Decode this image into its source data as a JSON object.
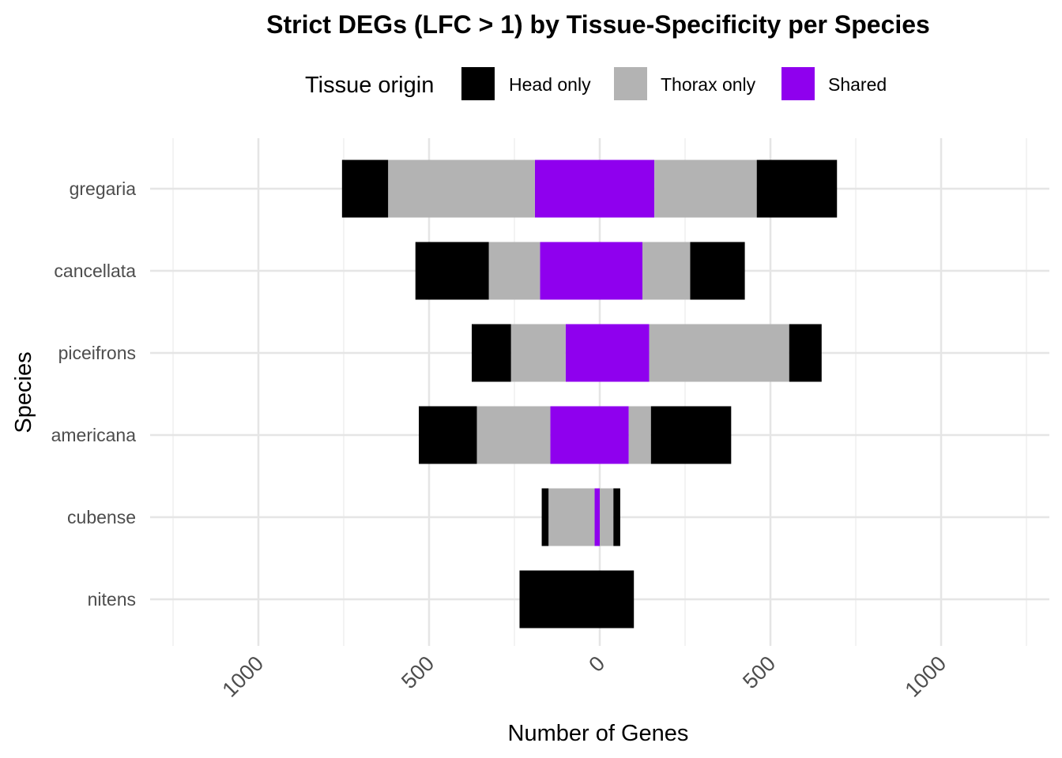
{
  "chart_data": {
    "type": "bar",
    "orientation": "horizontal",
    "stacked": true,
    "diverging": true,
    "title": "Strict DEGs (LFC > 1) by Tissue-Specificity per Species",
    "xlabel": "Number of Genes",
    "ylabel": "Species",
    "legend": {
      "title": "Tissue origin",
      "placement": "top",
      "entries": [
        {
          "key": "head",
          "label": "Head only",
          "color": "#000000"
        },
        {
          "key": "thorax",
          "label": "Thorax only",
          "color": "#b3b3b3"
        },
        {
          "key": "shared",
          "label": "Shared",
          "color": "#8f00ee"
        }
      ]
    },
    "xlim": [
      -1250,
      1250
    ],
    "x_ticks": [
      -1000,
      -500,
      0,
      500,
      1000
    ],
    "x_tick_labels": [
      "1000",
      "500",
      "0",
      "500",
      "1000"
    ],
    "grid": true,
    "categories": [
      "gregaria",
      "cancellata",
      "piceifrons",
      "americana",
      "cubense",
      "nitens"
    ],
    "stack_order_from_center": [
      "shared",
      "thorax",
      "head"
    ],
    "negative_side": {
      "shared": [
        190,
        175,
        100,
        145,
        15,
        0
      ],
      "thorax": [
        430,
        150,
        160,
        215,
        135,
        0
      ],
      "head": [
        135,
        215,
        115,
        170,
        20,
        235
      ]
    },
    "positive_side": {
      "shared": [
        160,
        125,
        145,
        85,
        0,
        0
      ],
      "thorax": [
        300,
        140,
        410,
        65,
        40,
        0
      ],
      "head": [
        235,
        160,
        95,
        235,
        20,
        100
      ]
    }
  }
}
